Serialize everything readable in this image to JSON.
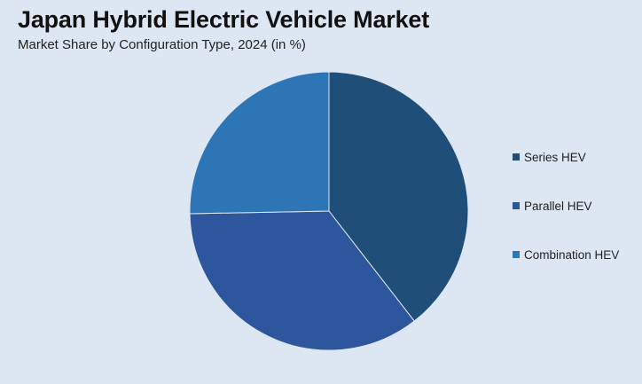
{
  "chart_data": {
    "type": "pie",
    "title": "Japan Hybrid Electric Vehicle Market",
    "subtitle": "Market Share by Configuration Type, 2024 (in %)",
    "categories": [
      "Series HEV",
      "Parallel HEV",
      "Combination HEV"
    ],
    "values": [
      39.5,
      35.2,
      25.3
    ],
    "colors": [
      "#1f4e79",
      "#2e569c",
      "#2e75b6"
    ],
    "legend_position": "right",
    "start_angle": "12 o'clock",
    "direction": "clockwise"
  }
}
